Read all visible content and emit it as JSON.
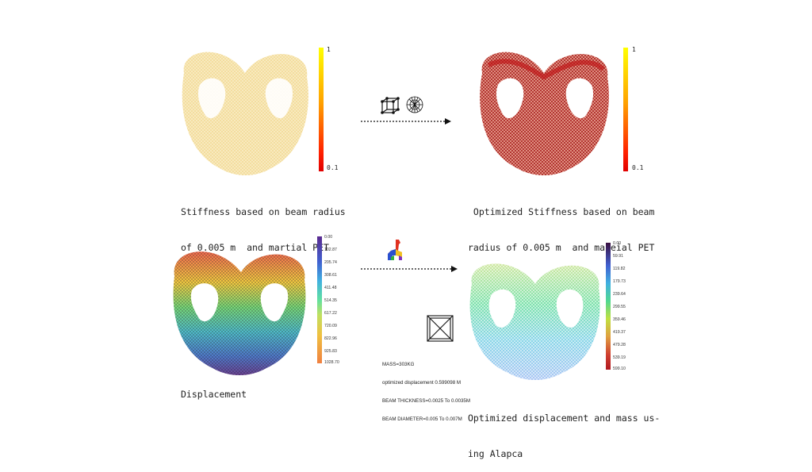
{
  "captions": {
    "top_left": [
      "Stiffness based on beam radius",
      "of 0.005 m  and martial PET"
    ],
    "top_right": [
      " Optimized Stiffness based on beam",
      "radius of 0.005 m  and mareial PET"
    ],
    "bottom_left": "Displacement",
    "bottom_right": [
      "Optimized displacement and mass us-",
      "ing Alapca"
    ]
  },
  "stiffness_scale_left": {
    "max": "1",
    "min": "0.1"
  },
  "stiffness_scale_right": {
    "max": "1",
    "min": "0.1"
  },
  "displacement_scale_left": [
    "0.00",
    "102.87",
    "205.74",
    "308.61",
    "411.48",
    "514.35",
    "617.22",
    "720.09",
    "822.96",
    "925.83",
    "1028.70"
  ],
  "displacement_scale_right": [
    "0.00",
    "59.91",
    "119.82",
    "179.73",
    "239.64",
    "299.55",
    "359.46",
    "419.37",
    "479.28",
    "539.19",
    "599.10"
  ],
  "optimization_notes": [
    "MASS=303KG",
    "optimized displacement 0.599098 M",
    "BEAM THICKNESS=0.0025 To 0.0035M",
    "BEAM DIAMETER=0.005 To 0.007M"
  ],
  "icons": [
    "lattice-cube-icon",
    "shell-fractal-icon",
    "alpaca-icon",
    "crossed-box-icon",
    "arrow-right-icon"
  ],
  "colors": {
    "pale_yellow": "#f6e3a6",
    "stiff_red": "#c0181a",
    "arrow": "#111111"
  }
}
